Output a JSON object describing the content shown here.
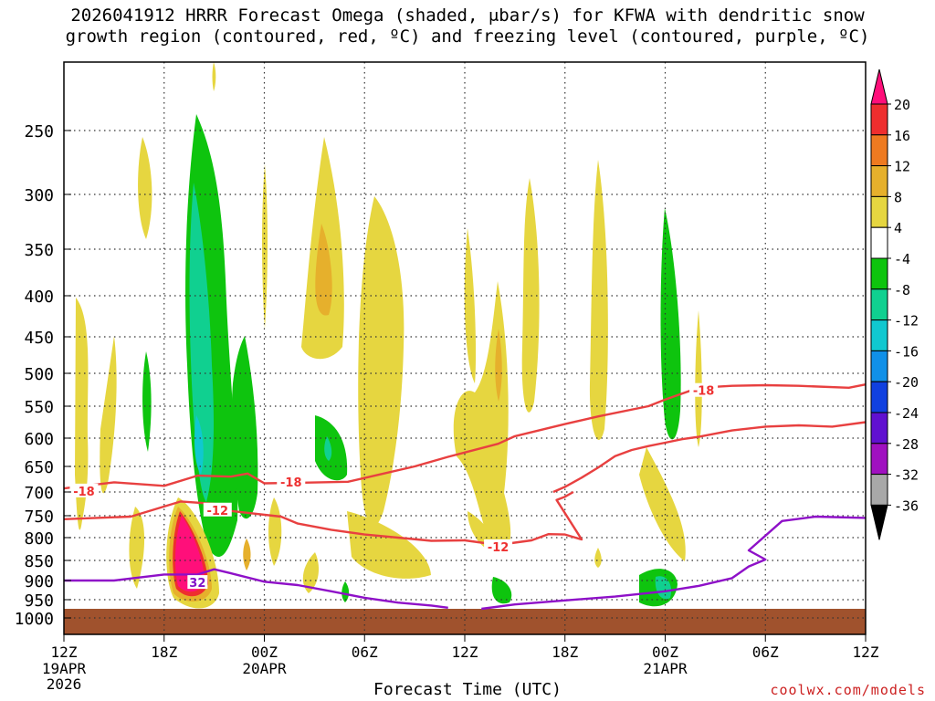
{
  "chart_data": {
    "type": "heatmap",
    "title": "2026041912 HRRR Forecast Omega (shaded, μbar/s) for KFWA with dendritic snow\ngrowth region (contoured, red, ºC) and freezing level (contoured, purple, ºC)",
    "xlabel": "Forecast Time (UTC)",
    "ylabel": "",
    "credit": "coolwx.com/models",
    "x_ticks": [
      {
        "hours": 0,
        "label": "12Z",
        "sub": [
          "19APR",
          "2026"
        ]
      },
      {
        "hours": 6,
        "label": "18Z",
        "sub": []
      },
      {
        "hours": 12,
        "label": "00Z",
        "sub": [
          "20APR"
        ]
      },
      {
        "hours": 18,
        "label": "06Z",
        "sub": []
      },
      {
        "hours": 24,
        "label": "12Z",
        "sub": []
      },
      {
        "hours": 30,
        "label": "18Z",
        "sub": []
      },
      {
        "hours": 36,
        "label": "00Z",
        "sub": [
          "21APR"
        ]
      },
      {
        "hours": 42,
        "label": "06Z",
        "sub": []
      },
      {
        "hours": 48,
        "label": "12Z",
        "sub": []
      }
    ],
    "x_range": [
      0,
      48
    ],
    "y_levels_mb": [
      250,
      300,
      350,
      400,
      450,
      500,
      550,
      600,
      650,
      700,
      750,
      800,
      850,
      900,
      950,
      1000
    ],
    "y_range_mb": [
      200,
      1020
    ],
    "ground_top_mb": 975,
    "colorbar": {
      "labels": [
        "20",
        "16",
        "12",
        "8",
        "4",
        "-4",
        "-8",
        "-12",
        "-16",
        "-20",
        "-24",
        "-28",
        "-32",
        "-36"
      ],
      "colors": [
        "#ff0f7a",
        "#ee2e2e",
        "#ee7a20",
        "#e6b02c",
        "#e6d640",
        "#ffffff",
        "#0ec40e",
        "#10d090",
        "#10c8d0",
        "#1090e8",
        "#1040e0",
        "#6010d0",
        "#a010c0",
        "#a8a8a8",
        "#000000"
      ]
    },
    "contour_labels": [
      {
        "text": "-18",
        "hours": 1.2,
        "mb": 698,
        "color": "#ee3030"
      },
      {
        "text": "-18",
        "hours": 13.6,
        "mb": 680,
        "color": "#ee3030"
      },
      {
        "text": "-18",
        "hours": 38.3,
        "mb": 526,
        "color": "#ee3030"
      },
      {
        "text": "-12",
        "hours": 9.2,
        "mb": 738,
        "color": "#ee3030"
      },
      {
        "text": "-12",
        "hours": 26.0,
        "mb": 820,
        "color": "#ee3030"
      },
      {
        "text": "32",
        "hours": 8.0,
        "mb": 905,
        "color": "#8010c8"
      }
    ],
    "series": [
      {
        "name": "-18C upper",
        "color": "#e84040",
        "points": [
          [
            0,
            693
          ],
          [
            3,
            681
          ],
          [
            6,
            688
          ],
          [
            8,
            668
          ],
          [
            10,
            670
          ],
          [
            11,
            664
          ],
          [
            12,
            683
          ],
          [
            14,
            682
          ],
          [
            17,
            680
          ],
          [
            19,
            665
          ],
          [
            21,
            650
          ],
          [
            23,
            633
          ],
          [
            26,
            610
          ],
          [
            27,
            597
          ],
          [
            30,
            578
          ],
          [
            32,
            566
          ],
          [
            35,
            550
          ],
          [
            36,
            540
          ],
          [
            38,
            522
          ],
          [
            40,
            519
          ],
          [
            42,
            518
          ],
          [
            44,
            519
          ],
          [
            47,
            522
          ],
          [
            48,
            517
          ]
        ]
      },
      {
        "name": "-18C lower",
        "color": "#e84040",
        "points": [
          [
            29.3,
            700
          ],
          [
            30,
            690
          ],
          [
            31,
            672
          ],
          [
            32,
            652
          ],
          [
            33,
            632
          ],
          [
            34,
            621
          ],
          [
            35,
            614
          ],
          [
            36,
            608
          ],
          [
            37,
            602
          ],
          [
            38,
            598
          ],
          [
            40,
            588
          ],
          [
            42,
            582
          ],
          [
            44,
            580
          ],
          [
            46,
            582
          ],
          [
            48,
            575
          ]
        ]
      },
      {
        "name": "-12C",
        "color": "#e84040",
        "points": [
          [
            0,
            758
          ],
          [
            4,
            752
          ],
          [
            7,
            720
          ],
          [
            9,
            725
          ],
          [
            10,
            740
          ],
          [
            13,
            752
          ],
          [
            14,
            768
          ],
          [
            16,
            782
          ],
          [
            18,
            793
          ],
          [
            20,
            800
          ],
          [
            22,
            807
          ],
          [
            24,
            806
          ],
          [
            26,
            816
          ],
          [
            28,
            806
          ],
          [
            29,
            792
          ],
          [
            30,
            793
          ],
          [
            31,
            804
          ],
          [
            29.5,
            717
          ],
          [
            30,
            710
          ],
          [
            30.5,
            700
          ]
        ]
      },
      {
        "name": "freezing level a",
        "color": "#8e10c8",
        "points": [
          [
            0,
            900
          ],
          [
            3,
            900
          ],
          [
            6,
            885
          ],
          [
            8,
            885
          ],
          [
            9,
            872
          ],
          [
            10,
            882
          ],
          [
            12,
            903
          ],
          [
            14,
            912
          ],
          [
            16,
            928
          ],
          [
            18,
            945
          ],
          [
            20,
            958
          ],
          [
            22,
            966
          ],
          [
            23,
            972
          ]
        ]
      },
      {
        "name": "freezing level b",
        "color": "#8e10c8",
        "points": [
          [
            25,
            975
          ],
          [
            27,
            963
          ],
          [
            30,
            952
          ],
          [
            33,
            942
          ],
          [
            36,
            928
          ],
          [
            38,
            914
          ],
          [
            40,
            894
          ],
          [
            41,
            865
          ],
          [
            42,
            848
          ],
          [
            41,
            828
          ],
          [
            43,
            762
          ],
          [
            45,
            752
          ],
          [
            48,
            755
          ]
        ]
      }
    ]
  }
}
